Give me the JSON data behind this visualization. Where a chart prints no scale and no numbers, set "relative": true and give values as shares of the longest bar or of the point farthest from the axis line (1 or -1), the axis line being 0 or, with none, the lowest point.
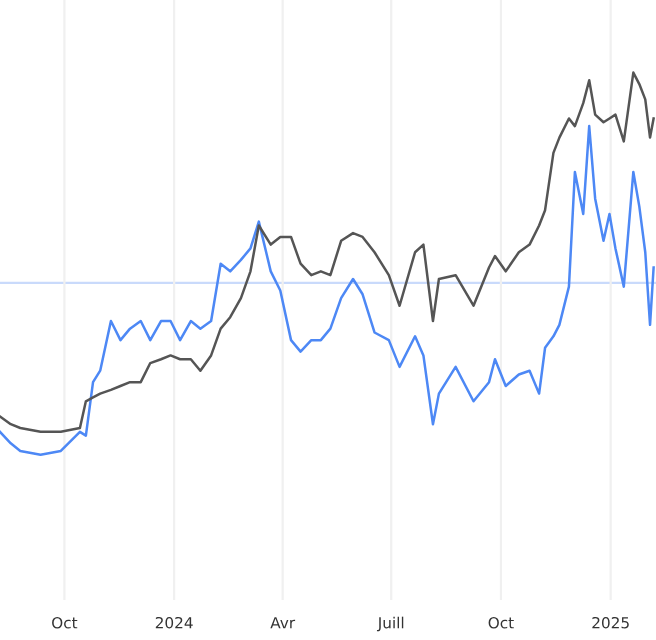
{
  "chart_data": {
    "type": "line",
    "relative": true,
    "grid": "x",
    "x": [
      "2023-08-08",
      "2023-08-17",
      "2023-08-25",
      "2023-09-11",
      "2023-09-28",
      "2023-10-14",
      "2023-10-19",
      "2023-10-25",
      "2023-10-31",
      "2023-11-09",
      "2023-11-17",
      "2023-11-25",
      "2023-12-04",
      "2023-12-12",
      "2023-12-21",
      "2023-12-29",
      "2024-01-06",
      "2024-01-15",
      "2024-01-23",
      "2024-02-01",
      "2024-02-09",
      "2024-02-17",
      "2024-02-26",
      "2024-03-05",
      "2024-03-12",
      "2024-03-22",
      "2024-03-30",
      "2024-04-08",
      "2024-04-16",
      "2024-04-25",
      "2024-05-03",
      "2024-05-11",
      "2024-05-20",
      "2024-05-30",
      "2024-06-07",
      "2024-06-17",
      "2024-06-29",
      "2024-07-08",
      "2024-07-21",
      "2024-07-28",
      "2024-08-05",
      "2024-08-10",
      "2024-08-24",
      "2024-09-08",
      "2024-09-21",
      "2024-09-26",
      "2024-10-05",
      "2024-10-16",
      "2024-10-25",
      "2024-11-02",
      "2024-11-07",
      "2024-11-14",
      "2024-11-19",
      "2024-11-27",
      "2024-12-02",
      "2024-12-09",
      "2024-12-14",
      "2024-12-19",
      "2024-12-26",
      "2024-12-31",
      "2025-01-05",
      "2025-01-12",
      "2025-01-20",
      "2025-01-25",
      "2025-01-30",
      "2025-02-03",
      "2025-02-06"
    ],
    "series": [
      {
        "color": "#555555",
        "values": [
          0.1,
          0.08,
          0.07,
          0.06,
          0.06,
          0.07,
          0.14,
          0.15,
          0.16,
          0.17,
          0.18,
          0.19,
          0.19,
          0.24,
          0.25,
          0.26,
          0.25,
          0.25,
          0.22,
          0.26,
          0.33,
          0.36,
          0.41,
          0.48,
          0.6,
          0.55,
          0.57,
          0.57,
          0.5,
          0.47,
          0.48,
          0.47,
          0.56,
          0.58,
          0.57,
          0.53,
          0.47,
          0.39,
          0.53,
          0.55,
          0.35,
          0.46,
          0.47,
          0.39,
          0.49,
          0.52,
          0.48,
          0.53,
          0.55,
          0.6,
          0.64,
          0.79,
          0.83,
          0.88,
          0.86,
          0.92,
          0.98,
          0.89,
          0.87,
          0.88,
          0.89,
          0.82,
          1,
          0.97,
          0.93,
          0.83,
          0.88
        ]
      },
      {
        "color": "#4d88f5",
        "values": [
          0.06,
          0.03,
          0.01,
          0,
          0.01,
          0.06,
          0.05,
          0.19,
          0.22,
          0.35,
          0.3,
          0.33,
          0.35,
          0.3,
          0.35,
          0.35,
          0.3,
          0.35,
          0.33,
          0.35,
          0.5,
          0.48,
          0.51,
          0.54,
          0.61,
          0.48,
          0.43,
          0.3,
          0.27,
          0.3,
          0.3,
          0.33,
          0.41,
          0.46,
          0.42,
          0.32,
          0.3,
          0.23,
          0.31,
          0.26,
          0.08,
          0.16,
          0.23,
          0.14,
          0.19,
          0.25,
          0.18,
          0.21,
          0.22,
          0.16,
          0.28,
          0.31,
          0.34,
          0.44,
          0.74,
          0.63,
          0.86,
          0.67,
          0.56,
          0.63,
          0.54,
          0.44,
          0.74,
          0.65,
          0.53,
          0.34,
          0.49
        ]
      }
    ],
    "ref_lines": [
      {
        "axis": "y",
        "value": 0.45,
        "color": "#c9dafb"
      }
    ],
    "xlim": [
      "2023-08-08",
      "2025-02-08"
    ],
    "xticks": [
      {
        "value": "2023-10-01",
        "label": "Oct"
      },
      {
        "value": "2024-01-01",
        "label": "2024"
      },
      {
        "value": "2024-04-01",
        "label": "Avr"
      },
      {
        "value": "2024-07-01",
        "label": "Juill"
      },
      {
        "value": "2024-10-01",
        "label": "Oct"
      },
      {
        "value": "2025-01-01",
        "label": "2025"
      }
    ],
    "tick_labels": "x"
  }
}
